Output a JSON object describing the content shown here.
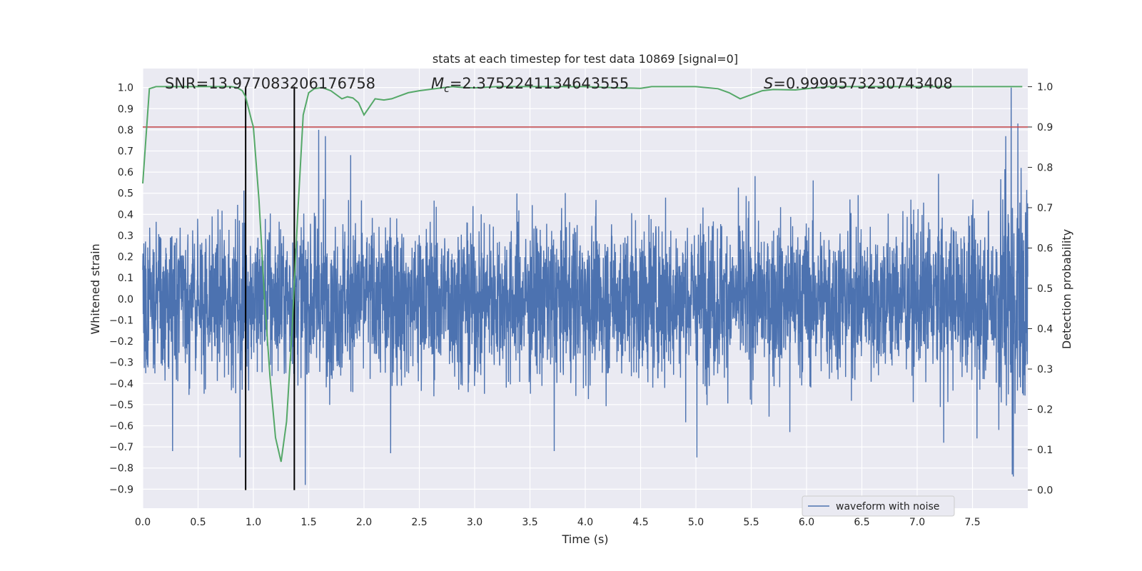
{
  "chart_data": {
    "type": "line",
    "title": "stats at each timestep for test data 10869 [signal=0]",
    "xlabel": "Time (s)",
    "ylabel_left": "Whitened strain",
    "ylabel_right": "Detection probability",
    "xlim": [
      0.0,
      8.0
    ],
    "ylim_left": [
      -0.99,
      1.09
    ],
    "ylim_right": [
      -0.045,
      1.045
    ],
    "x_ticks": [
      "0.0",
      "0.5",
      "1.0",
      "1.5",
      "2.0",
      "2.5",
      "3.0",
      "3.5",
      "4.0",
      "4.5",
      "5.0",
      "5.5",
      "6.0",
      "6.5",
      "7.0",
      "7.5"
    ],
    "x_tick_values": [
      0,
      0.5,
      1,
      1.5,
      2,
      2.5,
      3,
      3.5,
      4,
      4.5,
      5,
      5.5,
      6,
      6.5,
      7,
      7.5
    ],
    "y_left_ticks": [
      "1.0",
      "0.9",
      "0.8",
      "0.7",
      "0.6",
      "0.5",
      "0.4",
      "0.3",
      "0.2",
      "0.1",
      "0.0",
      "−0.1",
      "−0.2",
      "−0.3",
      "−0.4",
      "−0.5",
      "−0.6",
      "−0.7",
      "−0.8",
      "−0.9"
    ],
    "y_left_tick_values": [
      1.0,
      0.9,
      0.8,
      0.7,
      0.6,
      0.5,
      0.4,
      0.3,
      0.2,
      0.1,
      0.0,
      -0.1,
      -0.2,
      -0.3,
      -0.4,
      -0.5,
      -0.6,
      -0.7,
      -0.8,
      -0.9
    ],
    "y_right_ticks": [
      "1.0",
      "0.9",
      "0.8",
      "0.7",
      "0.6",
      "0.5",
      "0.4",
      "0.3",
      "0.2",
      "0.1",
      "0.0"
    ],
    "y_right_tick_values": [
      1.0,
      0.9,
      0.8,
      0.7,
      0.6,
      0.5,
      0.4,
      0.3,
      0.2,
      0.1,
      0.0
    ],
    "annotations": {
      "snr": "SNR=13.977083206176758",
      "mc_symbol": "M",
      "mc_subscript": "c",
      "mc_value": "=2.3752241134643555",
      "s_symbol": "S",
      "s_value": "=0.9999573230743408"
    },
    "threshold": {
      "axis": "right",
      "value": 0.9,
      "color": "#c44e52"
    },
    "vertical_markers": {
      "x": [
        0.93,
        1.37
      ],
      "y_range": [
        0.0,
        1.0
      ],
      "color": "#000000"
    },
    "series": [
      {
        "name": "waveform with noise",
        "axis": "left",
        "color": "#4c72b0",
        "style": "noise",
        "sample_rate_hz": 256,
        "typical_amplitude": 0.42,
        "notable_peaks": [
          {
            "x": 1.47,
            "y": -0.88
          },
          {
            "x": 0.88,
            "y": -0.75
          },
          {
            "x": 0.27,
            "y": -0.72
          },
          {
            "x": 1.59,
            "y": 0.8
          },
          {
            "x": 1.65,
            "y": 0.77
          },
          {
            "x": 1.88,
            "y": 0.68
          },
          {
            "x": 5.01,
            "y": -0.75
          },
          {
            "x": 3.72,
            "y": -0.72
          },
          {
            "x": 2.24,
            "y": -0.73
          },
          {
            "x": 5.85,
            "y": -0.63
          },
          {
            "x": 7.85,
            "y": 1.0
          },
          {
            "x": 7.86,
            "y": -0.83
          },
          {
            "x": 7.87,
            "y": -0.84
          },
          {
            "x": 7.91,
            "y": 0.83
          },
          {
            "x": 7.8,
            "y": 0.77
          },
          {
            "x": 7.24,
            "y": -0.68
          },
          {
            "x": 7.54,
            "y": -0.66
          }
        ]
      },
      {
        "name": "detection probability",
        "axis": "right",
        "color": "#55a868",
        "x": [
          0.0,
          0.06,
          0.12,
          0.25,
          0.5,
          0.75,
          0.8,
          0.85,
          0.9,
          0.93,
          0.98,
          1.0,
          1.05,
          1.1,
          1.15,
          1.2,
          1.25,
          1.3,
          1.35,
          1.4,
          1.45,
          1.5,
          1.55,
          1.62,
          1.7,
          1.8,
          1.85,
          1.9,
          1.95,
          2.0,
          2.05,
          2.1,
          2.18,
          2.25,
          2.3,
          2.4,
          2.5,
          2.7,
          2.8,
          2.9,
          3.0,
          3.2,
          3.5,
          4.0,
          4.3,
          4.5,
          4.6,
          5.0,
          5.2,
          5.3,
          5.4,
          5.5,
          5.6,
          5.7,
          5.9,
          6.0,
          6.2,
          6.5,
          7.0,
          7.5,
          7.95
        ],
        "y": [
          0.76,
          0.995,
          1.0,
          1.0,
          1.0,
          1.0,
          1.0,
          0.998,
          0.99,
          0.975,
          0.92,
          0.9,
          0.72,
          0.48,
          0.28,
          0.13,
          0.07,
          0.17,
          0.4,
          0.68,
          0.93,
          0.985,
          0.995,
          0.998,
          0.99,
          0.97,
          0.975,
          0.972,
          0.96,
          0.93,
          0.95,
          0.97,
          0.967,
          0.97,
          0.975,
          0.985,
          0.99,
          0.997,
          1.0,
          0.998,
          0.997,
          1.0,
          1.0,
          1.0,
          0.997,
          0.996,
          1.0,
          1.0,
          0.995,
          0.985,
          0.97,
          0.98,
          0.99,
          0.993,
          0.992,
          0.995,
          1.0,
          1.0,
          1.0,
          1.0,
          1.0
        ]
      }
    ],
    "legend": {
      "entries": [
        "waveform with noise"
      ],
      "location": "lower-right"
    },
    "grid": true
  }
}
